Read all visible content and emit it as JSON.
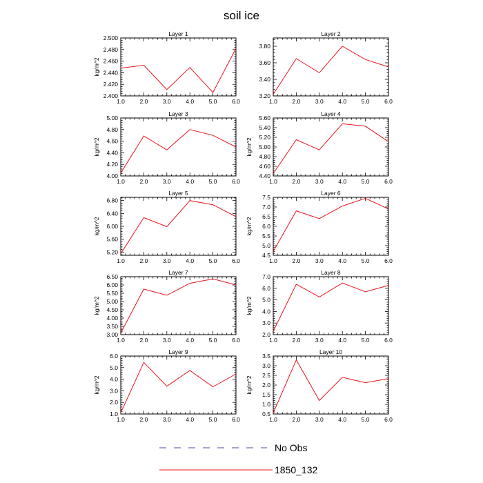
{
  "figure": {
    "title": "soil ice"
  },
  "legend": {
    "entries": [
      {
        "label": "No Obs",
        "color": "#4a4aa0",
        "style": "dashed"
      },
      {
        "label": "1850_132",
        "color": "#e8111a",
        "style": "solid"
      }
    ]
  },
  "chart_data": [
    {
      "type": "line",
      "title": "Layer 1",
      "xlabel": "",
      "ylabel": "kg/m^2",
      "x": [
        1,
        2,
        3,
        4,
        5,
        6
      ],
      "xlim": [
        1,
        6
      ],
      "xticks": [
        "1.0",
        "2.0",
        "3.0",
        "4.0",
        "5.0",
        "6.0"
      ],
      "ylim": [
        2.4,
        2.5
      ],
      "yticks": [
        "2.400",
        "2.420",
        "2.440",
        "2.460",
        "2.480",
        "2.500"
      ],
      "series": [
        {
          "name": "1850_132",
          "color": "#e8111a",
          "values": [
            2.448,
            2.453,
            2.411,
            2.449,
            2.406,
            2.482
          ]
        }
      ]
    },
    {
      "type": "line",
      "title": "Layer 2",
      "xlabel": "",
      "ylabel": "",
      "x": [
        1,
        2,
        3,
        4,
        5,
        6
      ],
      "xlim": [
        1,
        6
      ],
      "xticks": [
        "1.0",
        "2.0",
        "3.0",
        "4.0",
        "5.0",
        "6.0"
      ],
      "ylim": [
        3.2,
        3.9
      ],
      "yticks": [
        "3.20",
        "3.40",
        "3.60",
        "3.80"
      ],
      "series": [
        {
          "name": "1850_132",
          "color": "#e8111a",
          "values": [
            3.22,
            3.65,
            3.48,
            3.8,
            3.64,
            3.55
          ]
        }
      ]
    },
    {
      "type": "line",
      "title": "Layer 3",
      "xlabel": "",
      "ylabel": "kg/m^2",
      "x": [
        1,
        2,
        3,
        4,
        5,
        6
      ],
      "xlim": [
        1,
        6
      ],
      "xticks": [
        "1.0",
        "2.0",
        "3.0",
        "4.0",
        "5.0",
        "6.0"
      ],
      "ylim": [
        4.0,
        5.0
      ],
      "yticks": [
        "4.00",
        "4.20",
        "4.40",
        "4.60",
        "4.80",
        "5.00"
      ],
      "series": [
        {
          "name": "1850_132",
          "color": "#e8111a",
          "values": [
            4.05,
            4.69,
            4.45,
            4.8,
            4.7,
            4.5
          ]
        }
      ]
    },
    {
      "type": "line",
      "title": "Layer 4",
      "xlabel": "",
      "ylabel": "kg/m^2",
      "x": [
        1,
        2,
        3,
        4,
        5,
        6
      ],
      "xlim": [
        1,
        6
      ],
      "xticks": [
        "1.0",
        "2.0",
        "3.0",
        "4.0",
        "5.0",
        "6.0"
      ],
      "ylim": [
        4.4,
        5.6
      ],
      "yticks": [
        "4.40",
        "4.60",
        "4.80",
        "5.00",
        "5.20",
        "5.40",
        "5.60"
      ],
      "series": [
        {
          "name": "1850_132",
          "color": "#e8111a",
          "values": [
            4.45,
            5.15,
            4.94,
            5.48,
            5.43,
            5.11
          ]
        }
      ]
    },
    {
      "type": "line",
      "title": "Layer 5",
      "xlabel": "",
      "ylabel": "kg/m^2",
      "x": [
        1,
        2,
        3,
        4,
        5,
        6
      ],
      "xlim": [
        1,
        6
      ],
      "xticks": [
        "1.0",
        "2.0",
        "3.0",
        "4.0",
        "5.0",
        "6.0"
      ],
      "ylim": [
        5.1,
        6.9
      ],
      "yticks": [
        "5.20",
        "5.60",
        "6.00",
        "6.40",
        "6.80"
      ],
      "series": [
        {
          "name": "1850_132",
          "color": "#e8111a",
          "values": [
            5.15,
            6.27,
            5.99,
            6.8,
            6.67,
            6.3
          ]
        }
      ]
    },
    {
      "type": "line",
      "title": "Layer 6",
      "xlabel": "",
      "ylabel": "kg/m^2",
      "x": [
        1,
        2,
        3,
        4,
        5,
        6
      ],
      "xlim": [
        1,
        6
      ],
      "xticks": [
        "1.0",
        "2.0",
        "3.0",
        "4.0",
        "5.0",
        "6.0"
      ],
      "ylim": [
        4.5,
        7.5
      ],
      "yticks": [
        "4.5",
        "5.0",
        "5.5",
        "6.0",
        "6.5",
        "7.0",
        "7.5"
      ],
      "series": [
        {
          "name": "1850_132",
          "color": "#e8111a",
          "values": [
            4.7,
            6.8,
            6.4,
            7.05,
            7.45,
            6.9
          ]
        }
      ]
    },
    {
      "type": "line",
      "title": "Layer 7",
      "xlabel": "",
      "ylabel": "kg/m^2",
      "x": [
        1,
        2,
        3,
        4,
        5,
        6
      ],
      "xlim": [
        1,
        6
      ],
      "xticks": [
        "1.0",
        "2.0",
        "3.0",
        "4.0",
        "5.0",
        "6.0"
      ],
      "ylim": [
        3.0,
        6.5
      ],
      "yticks": [
        "3.00",
        "3.50",
        "4.00",
        "4.50",
        "5.00",
        "5.50",
        "6.00",
        "6.50"
      ],
      "series": [
        {
          "name": "1850_132",
          "color": "#e8111a",
          "values": [
            3.1,
            5.75,
            5.38,
            6.1,
            6.37,
            6.0
          ]
        }
      ]
    },
    {
      "type": "line",
      "title": "Layer 8",
      "xlabel": "",
      "ylabel": "kg/m^2",
      "x": [
        1,
        2,
        3,
        4,
        5,
        6
      ],
      "xlim": [
        1,
        6
      ],
      "xticks": [
        "1.0",
        "2.0",
        "3.0",
        "4.0",
        "5.0",
        "6.0"
      ],
      "ylim": [
        2.0,
        7.0
      ],
      "yticks": [
        "2.0",
        "3.0",
        "4.0",
        "5.0",
        "6.0",
        "7.0"
      ],
      "series": [
        {
          "name": "1850_132",
          "color": "#e8111a",
          "values": [
            2.3,
            6.35,
            5.25,
            6.45,
            5.7,
            6.25
          ]
        }
      ]
    },
    {
      "type": "line",
      "title": "Layer 9",
      "xlabel": "",
      "ylabel": "kg/m^2",
      "x": [
        1,
        2,
        3,
        4,
        5,
        6
      ],
      "xlim": [
        1,
        6
      ],
      "xticks": [
        "1.0",
        "2.0",
        "3.0",
        "4.0",
        "5.0",
        "6.0"
      ],
      "ylim": [
        1.0,
        6.0
      ],
      "yticks": [
        "1.0",
        "2.0",
        "3.0",
        "4.0",
        "5.0",
        "6.0"
      ],
      "series": [
        {
          "name": "1850_132",
          "color": "#e8111a",
          "values": [
            1.1,
            5.45,
            3.4,
            4.75,
            3.35,
            4.45
          ]
        }
      ]
    },
    {
      "type": "line",
      "title": "Layer 10",
      "xlabel": "",
      "ylabel": "kg/m^2",
      "x": [
        1,
        2,
        3,
        4,
        5,
        6
      ],
      "xlim": [
        1,
        6
      ],
      "xticks": [
        "1.0",
        "2.0",
        "3.0",
        "4.0",
        "5.0",
        "6.0"
      ],
      "ylim": [
        0.5,
        3.5
      ],
      "yticks": [
        "0.5",
        "1.0",
        "1.5",
        "2.0",
        "2.5",
        "3.0",
        "3.5"
      ],
      "series": [
        {
          "name": "1850_132",
          "color": "#e8111a",
          "values": [
            0.55,
            3.3,
            1.2,
            2.4,
            2.12,
            2.33
          ]
        }
      ]
    }
  ]
}
